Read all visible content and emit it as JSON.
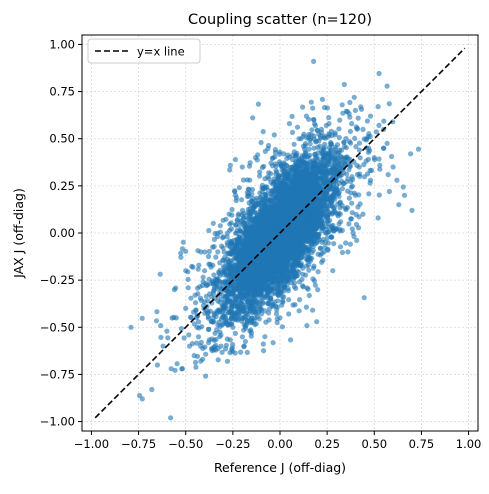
{
  "chart_data": {
    "type": "scatter",
    "title": "Coupling scatter (n=120)",
    "xlabel": "Reference J (off-diag)",
    "ylabel": "JAX J (off-diag)",
    "xlim": [
      -1.05,
      1.05
    ],
    "ylim": [
      -1.05,
      1.05
    ],
    "xticks": [
      -1.0,
      -0.75,
      -0.5,
      -0.25,
      0.0,
      0.25,
      0.5,
      0.75,
      1.0
    ],
    "yticks": [
      -1.0,
      -0.75,
      -0.5,
      -0.25,
      0.0,
      0.25,
      0.5,
      0.75,
      1.0
    ],
    "xtick_labels": [
      "−1.00",
      "−0.75",
      "−0.50",
      "−0.25",
      "0.00",
      "0.25",
      "0.50",
      "0.75",
      "1.00"
    ],
    "ytick_labels": [
      "−1.00",
      "−0.75",
      "−0.50",
      "−0.25",
      "0.00",
      "0.25",
      "0.50",
      "0.75",
      "1.00"
    ],
    "grid": true,
    "legend_position": "top-left",
    "colors": {
      "points": "#1f77b4",
      "reference_line": "#000000",
      "grid": "#d9d9d9"
    },
    "series": [
      {
        "name": "y=x line",
        "kind": "line",
        "style": "dashed",
        "x": [
          -0.98,
          0.98
        ],
        "y": [
          -0.98,
          0.98
        ]
      },
      {
        "kind": "scatter",
        "points": [
          [
            -0.79,
            -0.5
          ],
          [
            -0.73,
            -0.88
          ],
          [
            -0.68,
            -0.83
          ],
          [
            -0.58,
            -0.98
          ],
          [
            -0.65,
            -0.7
          ],
          [
            -0.62,
            -0.6
          ],
          [
            -0.6,
            -0.52
          ],
          [
            -0.55,
            -0.45
          ],
          [
            -0.52,
            -0.72
          ],
          [
            -0.5,
            -0.4
          ],
          [
            -0.48,
            -0.6
          ],
          [
            -0.45,
            -0.33
          ],
          [
            -0.44,
            -0.5
          ],
          [
            -0.42,
            -0.68
          ],
          [
            -0.4,
            -0.2
          ],
          [
            -0.38,
            -0.42
          ],
          [
            -0.35,
            -0.3
          ],
          [
            -0.35,
            -0.62
          ],
          [
            -0.33,
            -0.1
          ],
          [
            -0.32,
            -0.55
          ],
          [
            -0.3,
            -0.02
          ],
          [
            -0.3,
            -0.4
          ],
          [
            -0.28,
            -0.22
          ],
          [
            -0.27,
            0.1
          ],
          [
            -0.25,
            -0.5
          ],
          [
            -0.24,
            0.22
          ],
          [
            -0.22,
            -0.35
          ],
          [
            -0.2,
            0.35
          ],
          [
            -0.19,
            -0.6
          ],
          [
            -0.18,
            0.05
          ],
          [
            -0.16,
            0.28
          ],
          [
            -0.15,
            -0.45
          ],
          [
            -0.13,
            0.4
          ],
          [
            -0.12,
            -0.2
          ],
          [
            -0.1,
            0.48
          ],
          [
            -0.08,
            -0.55
          ],
          [
            -0.06,
            0.32
          ],
          [
            -0.05,
            -0.35
          ],
          [
            -0.03,
            0.52
          ],
          [
            0.0,
            -0.45
          ],
          [
            0.02,
            0.42
          ],
          [
            0.04,
            -0.25
          ],
          [
            0.05,
            0.58
          ],
          [
            0.08,
            -0.38
          ],
          [
            0.1,
            0.5
          ],
          [
            0.12,
            -0.28
          ],
          [
            0.14,
            0.62
          ],
          [
            0.16,
            -0.15
          ],
          [
            0.18,
            0.45
          ],
          [
            0.2,
            -0.3
          ],
          [
            0.22,
            0.55
          ],
          [
            0.24,
            -0.05
          ],
          [
            0.26,
            0.58
          ],
          [
            0.28,
            -0.2
          ],
          [
            0.3,
            0.4
          ],
          [
            0.32,
            0.1
          ],
          [
            0.34,
            0.48
          ],
          [
            0.36,
            -0.1
          ],
          [
            0.38,
            0.58
          ],
          [
            0.4,
            0.2
          ],
          [
            0.42,
            0.35
          ],
          [
            0.44,
            0.1
          ],
          [
            0.46,
            0.5
          ],
          [
            0.48,
            0.28
          ],
          [
            0.5,
            0.4
          ],
          [
            0.52,
            0.08
          ],
          [
            0.55,
            0.45
          ],
          [
            0.58,
            0.22
          ],
          [
            0.6,
            0.35
          ],
          [
            0.63,
            0.15
          ],
          [
            0.66,
            0.2
          ],
          [
            0.7,
            0.12
          ],
          [
            0.55,
            0.55
          ],
          [
            0.62,
            0.28
          ],
          [
            -0.42,
            -0.1
          ],
          [
            -0.5,
            -0.2
          ],
          [
            -0.56,
            -0.3
          ],
          [
            0.4,
            0.65
          ],
          [
            0.48,
            0.62
          ],
          [
            0.33,
            0.68
          ]
        ],
        "clusters": [
          {
            "center": [
              0.0,
              0.0
            ],
            "spread": [
              0.18,
              0.24
            ],
            "correlation": 0.72,
            "count": 2600
          },
          {
            "center": [
              0.0,
              0.0
            ],
            "spread": [
              0.12,
              0.17
            ],
            "correlation": 0.72,
            "count": 3200
          },
          {
            "center": [
              0.0,
              0.0
            ],
            "spread": [
              0.25,
              0.3
            ],
            "correlation": 0.6,
            "count": 500
          }
        ]
      }
    ]
  }
}
